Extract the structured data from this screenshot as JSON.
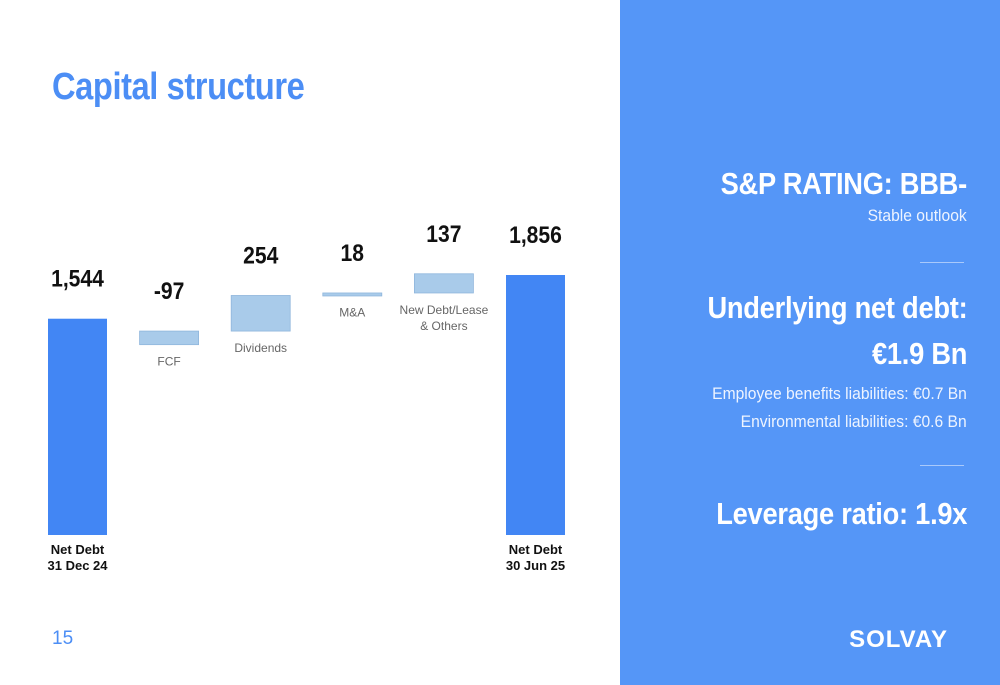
{
  "title": "Capital structure",
  "page_number": "15",
  "colors": {
    "total_bar": "#4286f4",
    "change_bar": "#a9cbea",
    "change_bar_border": "#8fb6dc",
    "accent": "#4c8ef5",
    "panel": "#5596f7"
  },
  "chart_data": {
    "type": "bar",
    "subtype": "waterfall",
    "categories": [
      "Net Debt\n31 Dec 24",
      "FCF",
      "Dividends",
      "M&A",
      "New Debt/Lease\n& Others",
      "Net Debt\n30 Jun 25"
    ],
    "values": [
      1544,
      -97,
      254,
      18,
      137,
      1856
    ],
    "value_labels": [
      "1,544",
      "-97",
      "254",
      "18",
      "137",
      "1,856"
    ],
    "kinds": [
      "total",
      "change",
      "change",
      "change",
      "change",
      "total"
    ],
    "ylim": [
      0,
      1856
    ],
    "grid": false,
    "legend": "none"
  },
  "panel": {
    "rating_title": "S&P RATING: BBB-",
    "rating_sub": "Stable outlook",
    "net_debt_title": "Underlying net debt:",
    "net_debt_value": "€1.9 Bn",
    "employee_liabilities": "Employee benefits liabilities: €0.7 Bn",
    "environmental_liabilities": "Environmental liabilities: €0.6 Bn",
    "leverage": "Leverage ratio: 1.9x"
  },
  "logo_text": "SOLVAY"
}
